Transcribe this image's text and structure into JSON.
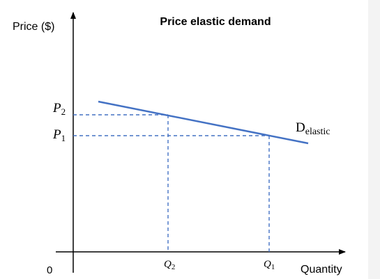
{
  "title": "Price elastic demand",
  "y_axis_label": "Price ($)",
  "x_axis_label": "Quantity",
  "origin_label": "0",
  "curve": {
    "base": "D",
    "subscript": "elastic"
  },
  "price_levels": [
    {
      "base": "P",
      "subscript": "2"
    },
    {
      "base": "P",
      "subscript": "1"
    }
  ],
  "quantity_levels": [
    {
      "base": "Q",
      "subscript": "2"
    },
    {
      "base": "Q",
      "subscript": "1"
    }
  ],
  "colors": {
    "curve": "#4472c4",
    "guides": "#4472c4",
    "axes": "#000000",
    "text": "#000000"
  }
}
